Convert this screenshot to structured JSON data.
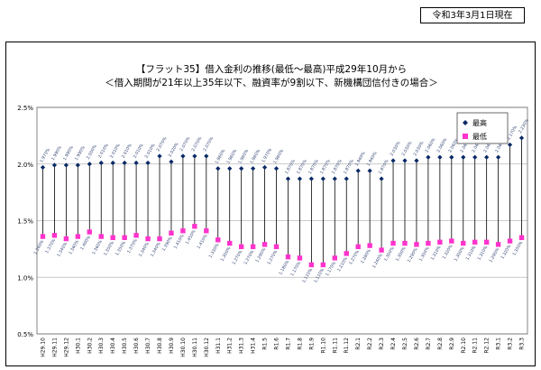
{
  "date_note": "令和3年3月1日現在",
  "chart_data": {
    "type": "line",
    "title": "【フラット35】借入金利の推移(最低～最高)平成29年10月から",
    "subtitle": "＜借入期間が21年以上35年以下、融資率が9割以下、新機構団信付きの場合＞",
    "xlabel": "",
    "ylabel": "",
    "ylim": [
      0.5,
      2.5
    ],
    "yticks": [
      "0.5%",
      "1.0%",
      "1.5%",
      "2.0%",
      "2.5%"
    ],
    "grid": true,
    "legend": "top-right",
    "categories": [
      "H29.10",
      "H29.11",
      "H29.12",
      "H30.1",
      "H30.2",
      "H30.3",
      "H30.4",
      "H30.5",
      "H30.6",
      "H30.7",
      "H30.8",
      "H30.9",
      "H30.10",
      "H30.11",
      "H30.12",
      "H31.1",
      "H31.2",
      "H31.3",
      "H31.4",
      "R1.5",
      "R1.6",
      "R1.7",
      "R1.8",
      "R1.9",
      "R1.10",
      "R1.11",
      "R1.12",
      "R2.1",
      "R2.2",
      "R2.3",
      "R2.4",
      "R2.5",
      "R2.6",
      "R2.7",
      "R2.8",
      "R2.9",
      "R2.10",
      "R2.11",
      "R2.12",
      "R3.1",
      "R3.2",
      "R3.3"
    ],
    "series": [
      {
        "name": "最高",
        "color": "#0a2a66",
        "values": [
          1.97,
          1.99,
          1.99,
          1.99,
          2.0,
          2.01,
          2.01,
          2.01,
          2.01,
          2.01,
          2.07,
          2.02,
          2.07,
          2.07,
          2.07,
          1.96,
          1.96,
          1.96,
          1.96,
          1.97,
          1.96,
          1.87,
          1.87,
          1.87,
          1.87,
          1.87,
          1.87,
          1.94,
          1.94,
          1.87,
          2.03,
          2.03,
          2.03,
          2.06,
          2.06,
          2.06,
          2.06,
          2.06,
          2.06,
          2.06,
          2.17,
          2.23
        ],
        "labels": [
          "1.970%",
          "1.990%",
          "1.990%",
          "1.990%",
          "2.000%",
          "2.010%",
          "2.010%",
          "2.010%",
          "2.010%",
          "2.010%",
          "2.070%",
          "2.020%",
          "2.070%",
          "2.070%",
          "2.070%",
          "1.960%",
          "1.960%",
          "1.960%",
          "1.960%",
          "1.970%",
          "1.960%",
          "1.870%",
          "1.870%",
          "1.870%",
          "1.870%",
          "1.870%",
          "1.870%",
          "1.940%",
          "1.940%",
          "1.870%",
          "2.030%",
          "2.030%",
          "2.030%",
          "2.060%",
          "2.060%",
          "2.060%",
          "2.060%",
          "2.060%",
          "2.060%",
          "2.060%",
          "2.170%",
          "2.230%"
        ]
      },
      {
        "name": "最低",
        "color": "#ff33cc",
        "values": [
          1.36,
          1.37,
          1.34,
          1.36,
          1.4,
          1.36,
          1.35,
          1.35,
          1.37,
          1.34,
          1.34,
          1.39,
          1.41,
          1.45,
          1.41,
          1.33,
          1.3,
          1.27,
          1.27,
          1.29,
          1.27,
          1.18,
          1.17,
          1.11,
          1.11,
          1.17,
          1.21,
          1.27,
          1.28,
          1.24,
          1.3,
          1.3,
          1.29,
          1.3,
          1.31,
          1.32,
          1.3,
          1.31,
          1.31,
          1.29,
          1.32,
          1.35
        ],
        "labels": [
          "1.360%",
          "1.370%",
          "1.340%",
          "1.360%",
          "1.400%",
          "1.360%",
          "1.350%",
          "1.350%",
          "1.370%",
          "1.340%",
          "1.340%",
          "1.390%",
          "1.410%",
          "1.450%",
          "1.410%",
          "1.330%",
          "1.300%",
          "1.270%",
          "1.270%",
          "1.290%",
          "1.270%",
          "1.180%",
          "1.170%",
          "1.110%",
          "1.110%",
          "1.170%",
          "1.210%",
          "1.270%",
          "1.280%",
          "1.240%",
          "1.300%",
          "1.300%",
          "1.290%",
          "1.300%",
          "1.310%",
          "1.320%",
          "1.300%",
          "1.310%",
          "1.310%",
          "1.290%",
          "1.320%",
          "1.350%"
        ]
      }
    ]
  }
}
